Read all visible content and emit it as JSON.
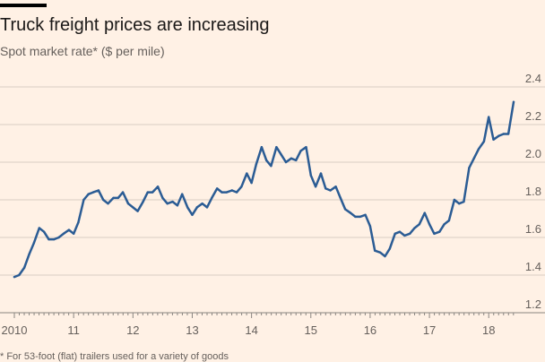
{
  "chart_data": {
    "type": "line",
    "title": "Truck freight prices are increasing",
    "subtitle": "Spot market rate* ($ per mile)",
    "footnote": "* For 53-foot (flat) trailers used for a variety of goods",
    "xlabel": "",
    "ylabel": "",
    "xlim": [
      2010.0,
      2018.45
    ],
    "ylim": [
      1.2,
      2.4
    ],
    "yticks": [
      1.2,
      1.4,
      1.6,
      1.8,
      2.0,
      2.2,
      2.4
    ],
    "ytick_labels": [
      "1.2",
      "1.4",
      "1.6",
      "1.8",
      "2.0",
      "2.2",
      "2.4"
    ],
    "xticks": [
      2010,
      2011,
      2012,
      2013,
      2014,
      2015,
      2016,
      2017,
      2018
    ],
    "xtick_labels": [
      "2010",
      "11",
      "12",
      "13",
      "14",
      "15",
      "16",
      "17",
      "18"
    ],
    "grid": "horizontal",
    "colors": {
      "line": "#2b5c94",
      "grid": "#d9cdc4",
      "axis": "#8a8580",
      "background": "#fff1e5"
    },
    "series": [
      {
        "values": [
          [
            2010.0,
            1.39
          ],
          [
            2010.08,
            1.4
          ],
          [
            2010.17,
            1.44
          ],
          [
            2010.25,
            1.51
          ],
          [
            2010.33,
            1.57
          ],
          [
            2010.42,
            1.65
          ],
          [
            2010.5,
            1.63
          ],
          [
            2010.58,
            1.59
          ],
          [
            2010.67,
            1.59
          ],
          [
            2010.75,
            1.6
          ],
          [
            2010.83,
            1.62
          ],
          [
            2010.92,
            1.64
          ],
          [
            2011.0,
            1.62
          ],
          [
            2011.08,
            1.68
          ],
          [
            2011.17,
            1.8
          ],
          [
            2011.25,
            1.83
          ],
          [
            2011.33,
            1.84
          ],
          [
            2011.42,
            1.85
          ],
          [
            2011.5,
            1.8
          ],
          [
            2011.58,
            1.78
          ],
          [
            2011.67,
            1.81
          ],
          [
            2011.75,
            1.81
          ],
          [
            2011.83,
            1.84
          ],
          [
            2011.92,
            1.78
          ],
          [
            2012.0,
            1.76
          ],
          [
            2012.08,
            1.74
          ],
          [
            2012.17,
            1.79
          ],
          [
            2012.25,
            1.84
          ],
          [
            2012.33,
            1.84
          ],
          [
            2012.42,
            1.87
          ],
          [
            2012.5,
            1.81
          ],
          [
            2012.58,
            1.78
          ],
          [
            2012.67,
            1.79
          ],
          [
            2012.75,
            1.77
          ],
          [
            2012.83,
            1.83
          ],
          [
            2012.92,
            1.76
          ],
          [
            2013.0,
            1.72
          ],
          [
            2013.08,
            1.76
          ],
          [
            2013.17,
            1.78
          ],
          [
            2013.25,
            1.76
          ],
          [
            2013.33,
            1.81
          ],
          [
            2013.42,
            1.86
          ],
          [
            2013.5,
            1.84
          ],
          [
            2013.58,
            1.84
          ],
          [
            2013.67,
            1.85
          ],
          [
            2013.75,
            1.84
          ],
          [
            2013.83,
            1.87
          ],
          [
            2013.92,
            1.94
          ],
          [
            2014.0,
            1.89
          ],
          [
            2014.08,
            1.99
          ],
          [
            2014.17,
            2.08
          ],
          [
            2014.25,
            2.01
          ],
          [
            2014.33,
            1.98
          ],
          [
            2014.42,
            2.08
          ],
          [
            2014.5,
            2.04
          ],
          [
            2014.58,
            2.0
          ],
          [
            2014.67,
            2.02
          ],
          [
            2014.75,
            2.01
          ],
          [
            2014.83,
            2.06
          ],
          [
            2014.92,
            2.08
          ],
          [
            2015.0,
            1.93
          ],
          [
            2015.08,
            1.87
          ],
          [
            2015.17,
            1.94
          ],
          [
            2015.25,
            1.86
          ],
          [
            2015.33,
            1.85
          ],
          [
            2015.42,
            1.87
          ],
          [
            2015.5,
            1.81
          ],
          [
            2015.58,
            1.75
          ],
          [
            2015.67,
            1.73
          ],
          [
            2015.75,
            1.71
          ],
          [
            2015.83,
            1.71
          ],
          [
            2015.92,
            1.72
          ],
          [
            2016.0,
            1.66
          ],
          [
            2016.08,
            1.53
          ],
          [
            2016.17,
            1.52
          ],
          [
            2016.25,
            1.5
          ],
          [
            2016.33,
            1.54
          ],
          [
            2016.42,
            1.62
          ],
          [
            2016.5,
            1.63
          ],
          [
            2016.58,
            1.61
          ],
          [
            2016.67,
            1.62
          ],
          [
            2016.75,
            1.65
          ],
          [
            2016.83,
            1.67
          ],
          [
            2016.92,
            1.73
          ],
          [
            2017.0,
            1.67
          ],
          [
            2017.08,
            1.62
          ],
          [
            2017.17,
            1.63
          ],
          [
            2017.25,
            1.67
          ],
          [
            2017.33,
            1.69
          ],
          [
            2017.42,
            1.8
          ],
          [
            2017.5,
            1.78
          ],
          [
            2017.58,
            1.79
          ],
          [
            2017.67,
            1.97
          ],
          [
            2017.75,
            2.02
          ],
          [
            2017.83,
            2.07
          ],
          [
            2017.92,
            2.11
          ],
          [
            2018.0,
            2.24
          ],
          [
            2018.08,
            2.12
          ],
          [
            2018.17,
            2.14
          ],
          [
            2018.25,
            2.15
          ],
          [
            2018.33,
            2.15
          ],
          [
            2018.42,
            2.32
          ]
        ]
      }
    ]
  }
}
